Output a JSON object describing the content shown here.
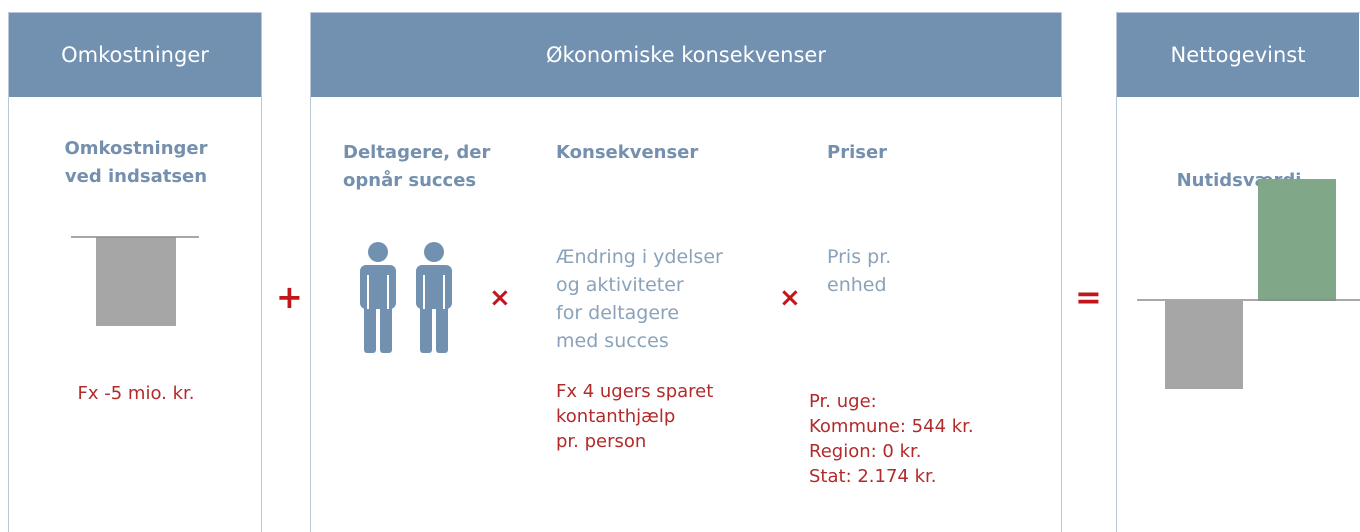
{
  "panels": [
    {
      "header": "Omkostninger",
      "subheading": [
        "Omkostninger",
        "ved indsatsen"
      ],
      "example": [
        "Fx -5 mio. kr."
      ]
    },
    {
      "header": "Økonomiske konsekvenser",
      "columns": [
        {
          "subheading": [
            "Deltagere, der",
            "opnår succes"
          ]
        },
        {
          "subheading": [
            "Konsekvenser"
          ],
          "description": [
            "Ændring i ydelser",
            "og aktiviteter",
            "for deltagere",
            "med succes"
          ],
          "example": [
            "Fx 4 ugers sparet",
            "kontanthjælp",
            "pr. person"
          ]
        },
        {
          "subheading": [
            "Priser"
          ],
          "description": [
            "Pris pr.",
            "enhed"
          ],
          "example": [
            "Pr. uge:",
            "Kommune: 544 kr.",
            "Region: 0 kr.",
            "Stat: 2.174 kr."
          ]
        }
      ]
    },
    {
      "header": "Nettogevinst",
      "subheading": [
        "Nutidsværdi"
      ]
    }
  ],
  "operators": [
    "+",
    "×",
    "×",
    "="
  ]
}
